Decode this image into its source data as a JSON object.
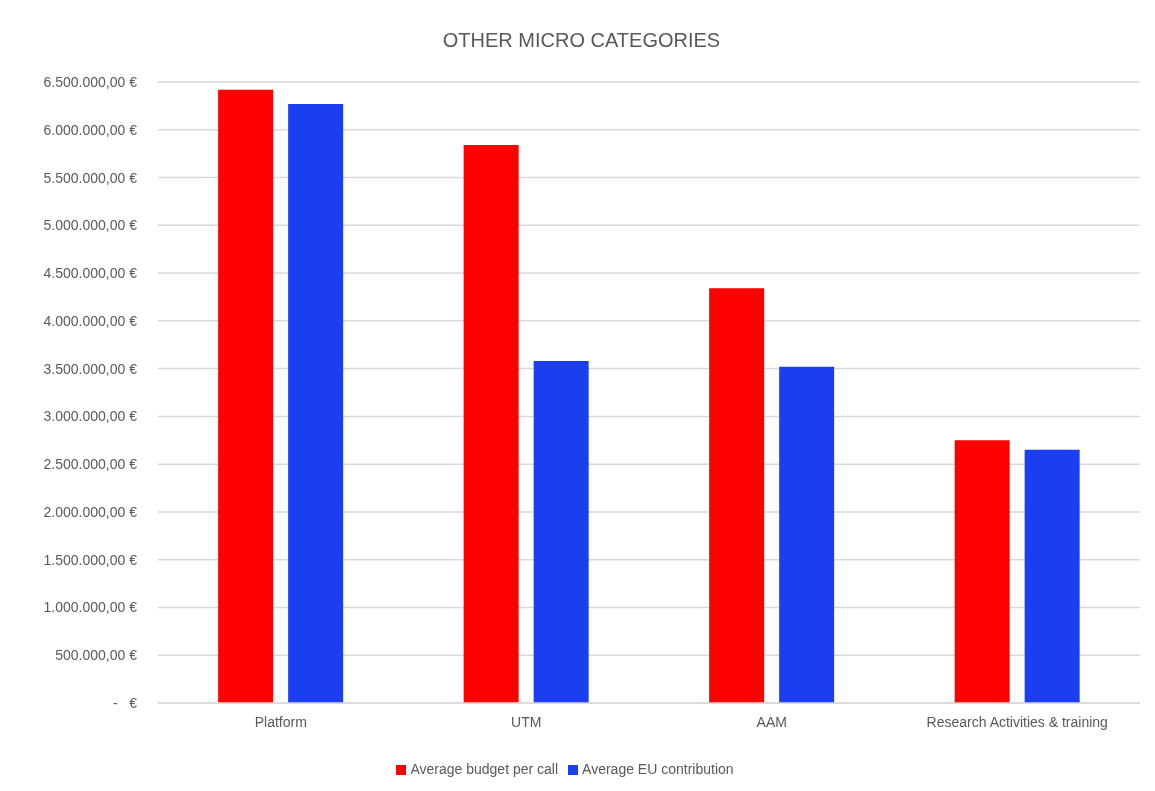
{
  "chart_data": {
    "type": "bar",
    "title": "OTHER MICRO CATEGORIES",
    "categories": [
      "Platform",
      "UTM",
      "AAM",
      "Research Activities & training"
    ],
    "series": [
      {
        "name": "Average budget per call",
        "color": "#ff0000",
        "values": [
          6420000,
          5840000,
          4340000,
          2750000
        ]
      },
      {
        "name": "Average EU contribution",
        "color": "#1a3ef0",
        "values": [
          6270000,
          3580000,
          3520000,
          2650000
        ]
      }
    ],
    "ylim": [
      0,
      6500000
    ],
    "yticks": [
      {
        "value": 0,
        "label": "-   €"
      },
      {
        "value": 500000,
        "label": "500.000,00 €"
      },
      {
        "value": 1000000,
        "label": "1.000.000,00 €"
      },
      {
        "value": 1500000,
        "label": "1.500.000,00 €"
      },
      {
        "value": 2000000,
        "label": "2.000.000,00 €"
      },
      {
        "value": 2500000,
        "label": "2.500.000,00 €"
      },
      {
        "value": 3000000,
        "label": "3.000.000,00 €"
      },
      {
        "value": 3500000,
        "label": "3.500.000,00 €"
      },
      {
        "value": 4000000,
        "label": "4.000.000,00 €"
      },
      {
        "value": 4500000,
        "label": "4.500.000,00 €"
      },
      {
        "value": 5000000,
        "label": "5.000.000,00 €"
      },
      {
        "value": 5500000,
        "label": "5.500.000,00 €"
      },
      {
        "value": 6000000,
        "label": "6.000.000,00 €"
      },
      {
        "value": 6500000,
        "label": "6.500.000,00 €"
      }
    ],
    "grid": "y",
    "legend": "bottom"
  }
}
